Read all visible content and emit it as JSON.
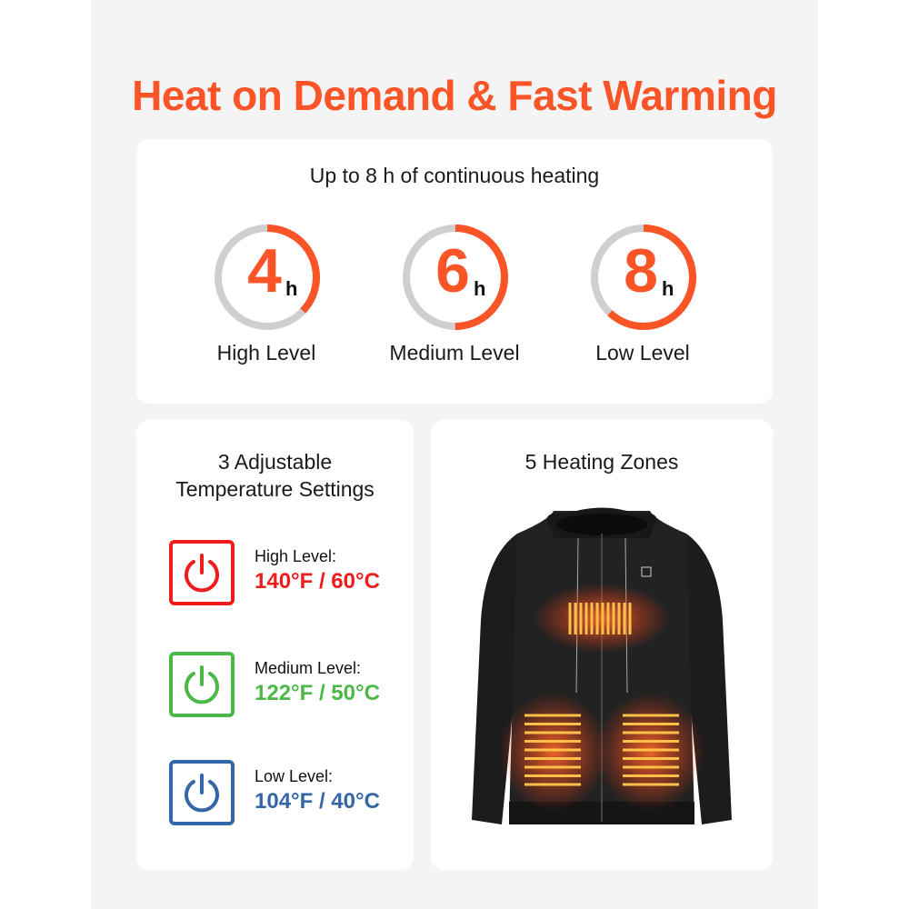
{
  "title": "Heat on Demand & Fast Warming",
  "runtime": {
    "heading": "Up to 8 h of continuous heating",
    "timers": [
      {
        "value": "4",
        "unit": "h",
        "label": "High Level",
        "fill": 0.37
      },
      {
        "value": "6",
        "unit": "h",
        "label": "Medium Level",
        "fill": 0.5
      },
      {
        "value": "8",
        "unit": "h",
        "label": "Low Level",
        "fill": 0.62
      }
    ]
  },
  "settings": {
    "heading_line1": "3 Adjustable",
    "heading_line2": "Temperature Settings",
    "items": [
      {
        "label": "High Level:",
        "value": "140°F / 60°C",
        "color": "#ee1c1c",
        "icon": "power-icon"
      },
      {
        "label": "Medium Level:",
        "value": "122°F / 50°C",
        "color": "#4cb848",
        "icon": "power-icon"
      },
      {
        "label": "Low Level:",
        "value": "104°F / 40°C",
        "color": "#3566a8",
        "icon": "power-icon"
      }
    ]
  },
  "zones": {
    "heading": "5 Heating Zones"
  },
  "colors": {
    "accent": "#fb5427",
    "ring_track": "#cfcfcf"
  }
}
